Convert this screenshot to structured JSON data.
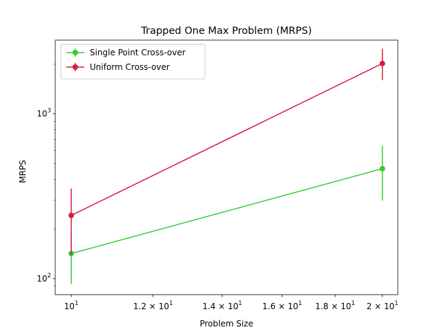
{
  "chart_data": {
    "type": "line",
    "title": "Trapped One Max Problem (MRPS)",
    "xlabel": "Problem Size",
    "ylabel": "MRPS",
    "xscale": "log",
    "yscale": "log",
    "xlim": [
      9.65,
      20.7
    ],
    "ylim": [
      80,
      2800
    ],
    "grid": false,
    "legend_position": "upper-left",
    "x_ticks": [
      {
        "value": 10,
        "base": "10",
        "exp": "1"
      },
      {
        "value": 12,
        "base": "1.2 × 10",
        "exp": "1"
      },
      {
        "value": 14,
        "base": "1.4 × 10",
        "exp": "1"
      },
      {
        "value": 16,
        "base": "1.6 × 10",
        "exp": "1"
      },
      {
        "value": 18,
        "base": "1.8 × 10",
        "exp": "1"
      },
      {
        "value": 20,
        "base": "2 × 10",
        "exp": "1"
      }
    ],
    "y_ticks": [
      {
        "value": 100,
        "base": "10",
        "exp": "2"
      },
      {
        "value": 1000,
        "base": "10",
        "exp": "3"
      }
    ],
    "series": [
      {
        "name": "Single Point Cross-over",
        "color": "#33cc33",
        "points": [
          {
            "x": 10,
            "y": 142,
            "ylow": 93,
            "yhigh": 186
          },
          {
            "x": 20,
            "y": 465,
            "ylow": 298,
            "yhigh": 640
          }
        ]
      },
      {
        "name": "Uniform Cross-over",
        "color": "#d91a3d",
        "points": [
          {
            "x": 10,
            "y": 242,
            "ylow": 139,
            "yhigh": 352
          },
          {
            "x": 20,
            "y": 2020,
            "ylow": 1600,
            "yhigh": 2480
          }
        ]
      }
    ]
  }
}
